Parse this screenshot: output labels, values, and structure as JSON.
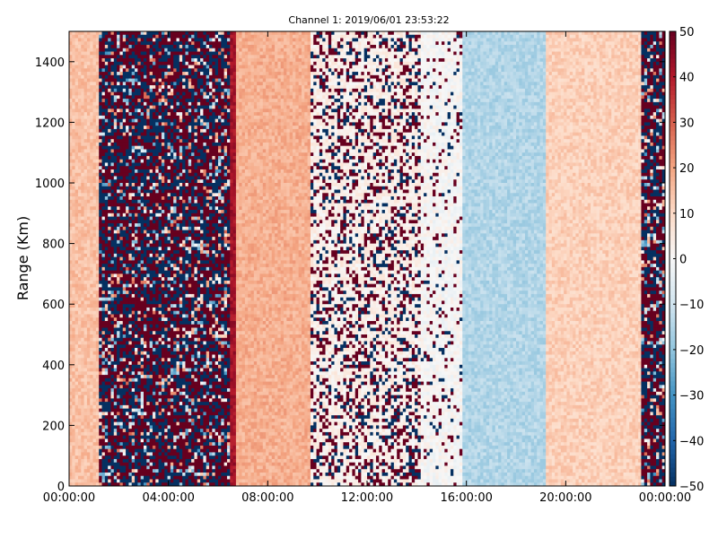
{
  "chart_data": {
    "type": "heatmap",
    "title": "Channel 1: 2019/06/01 23:53:22",
    "xlabel": "",
    "ylabel": "Range (Km)",
    "x_range_hours": [
      0,
      24
    ],
    "ylim": [
      0,
      1500
    ],
    "x_tick_labels": [
      "00:00:00",
      "04:00:00",
      "08:00:00",
      "12:00:00",
      "16:00:00",
      "20:00:00",
      "00:00:00"
    ],
    "y_tick_labels": [
      "0",
      "200",
      "400",
      "600",
      "800",
      "1000",
      "1200",
      "1400"
    ],
    "colorbar": {
      "colormap": "RdBu_r",
      "range": [
        -50,
        50
      ],
      "tick_labels": [
        "50",
        "40",
        "30",
        "20",
        "10",
        "0",
        "−10",
        "−20",
        "−30",
        "−40",
        "−50"
      ]
    },
    "regions": [
      {
        "hours": [
          0.0,
          1.2
        ],
        "description": "light red background",
        "mean": 15,
        "noise": "low"
      },
      {
        "hours": [
          1.2,
          6.5
        ],
        "description": "saturated noisy band",
        "mean": 0,
        "noise": "saturated"
      },
      {
        "hours": [
          6.5,
          6.7
        ],
        "description": "dark red edge",
        "mean": 42,
        "noise": "low"
      },
      {
        "hours": [
          6.7,
          9.7
        ],
        "description": "light red, fading",
        "mean": 18,
        "noise": "low"
      },
      {
        "hours": [
          9.7,
          14.2
        ],
        "description": "sparse saturated speckle",
        "mean": 3,
        "noise": "speckle"
      },
      {
        "hours": [
          14.2,
          15.8
        ],
        "description": "sparser speckle",
        "mean": 0,
        "noise": "speckle-light"
      },
      {
        "hours": [
          15.8,
          19.2
        ],
        "description": "light blue",
        "mean": -15,
        "noise": "low"
      },
      {
        "hours": [
          19.2,
          23.0
        ],
        "description": "light red",
        "mean": 12,
        "noise": "low"
      },
      {
        "hours": [
          23.0,
          24.0
        ],
        "description": "saturated noisy edge",
        "mean": 0,
        "noise": "saturated"
      }
    ]
  }
}
